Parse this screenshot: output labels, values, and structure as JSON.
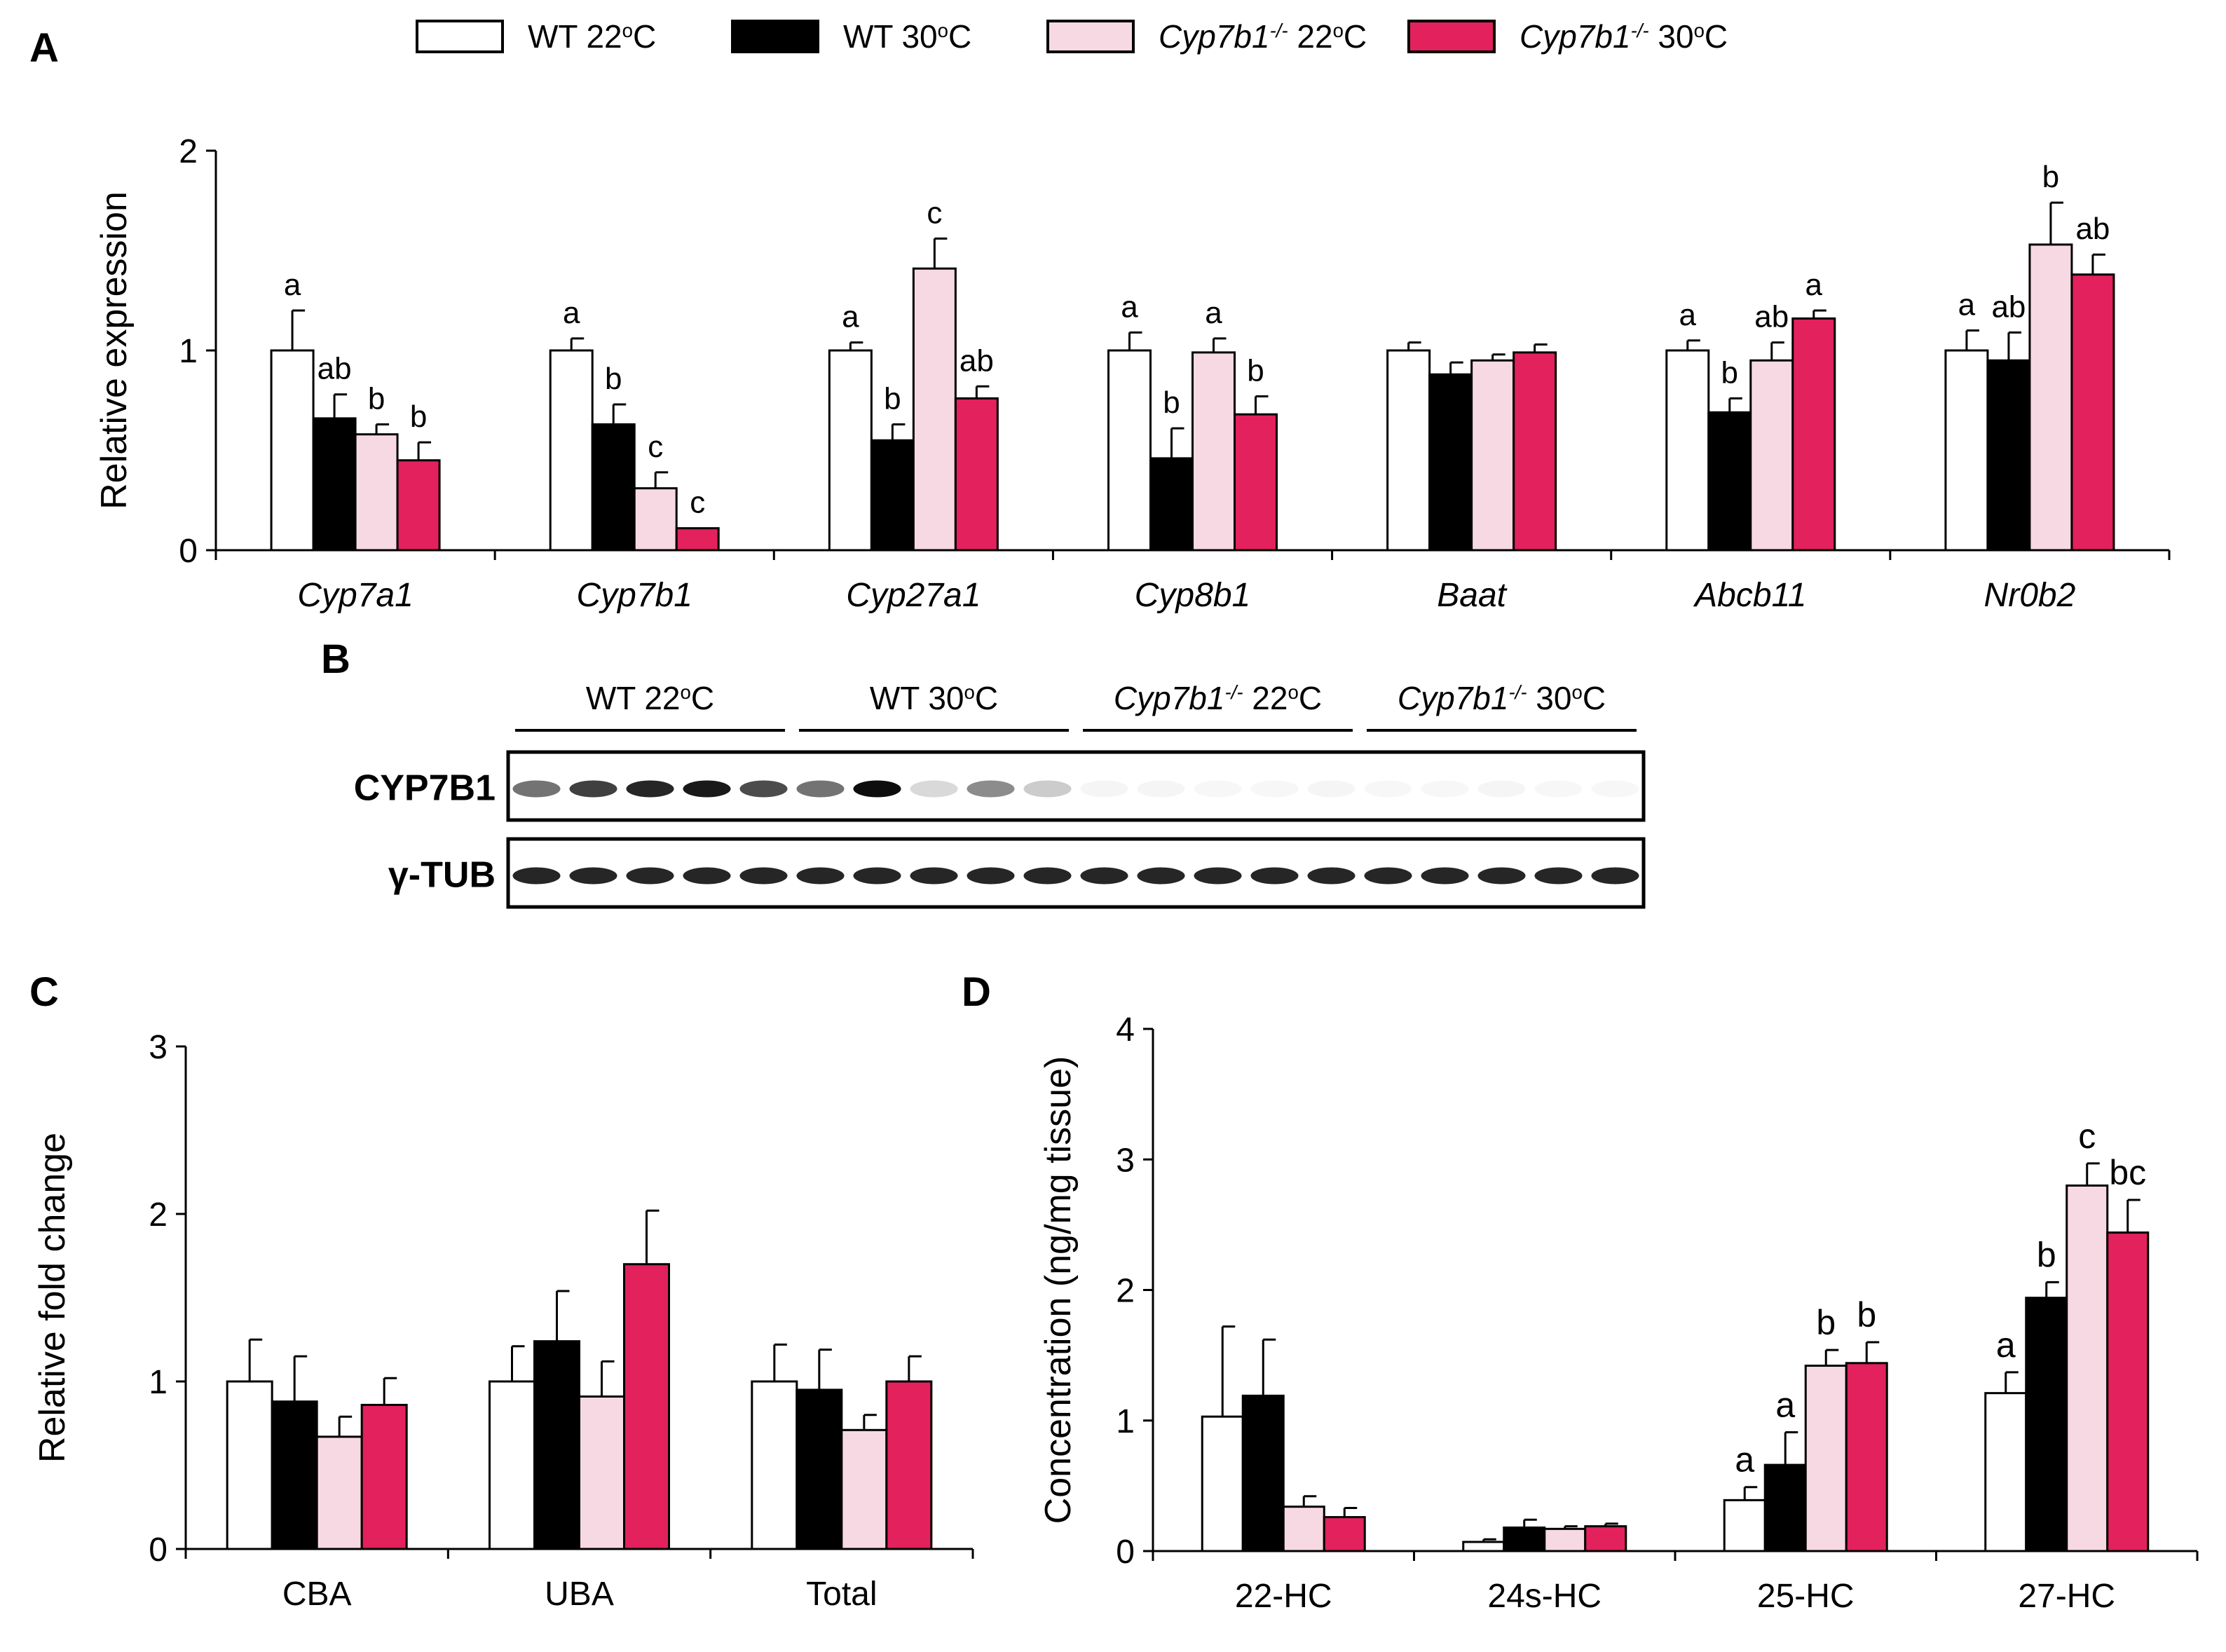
{
  "legend": [
    {
      "name": "WT 22°C",
      "parts": [
        "WT 22",
        "o",
        "C"
      ],
      "italic": false,
      "color": "#ffffff"
    },
    {
      "name": "WT 30°C",
      "parts": [
        "WT 30",
        "o",
        "C"
      ],
      "italic": false,
      "color": "#000000"
    },
    {
      "name": "Cyp7b1-/- 22°C",
      "parts": [
        "Cyp7b1",
        "-/-",
        " 22",
        "o",
        "C"
      ],
      "italic": true,
      "color": "#f7d9e4"
    },
    {
      "name": "Cyp7b1-/- 30°C",
      "parts": [
        "Cyp7b1",
        "-/-",
        " 30",
        "o",
        "C"
      ],
      "italic": true,
      "color": "#e2215d"
    }
  ],
  "panels": {
    "A": "A",
    "B": "B",
    "C": "C",
    "D": "D"
  },
  "chart_data": [
    {
      "panel": "A",
      "type": "bar",
      "ylabel": "Relative expression",
      "ylim": [
        0,
        2
      ],
      "yticks": [
        "0",
        "1",
        "2"
      ],
      "categories": [
        "Cyp7a1",
        "Cyp7b1",
        "Cyp27a1",
        "Cyp8b1",
        "Baat",
        "Abcb11",
        "Nr0b2"
      ],
      "italic_categories": true,
      "series": [
        {
          "name": "WT 22°C",
          "values": [
            1.0,
            1.0,
            1.0,
            1.0,
            1.0,
            1.0,
            1.0
          ],
          "errors": [
            0.2,
            0.06,
            0.04,
            0.09,
            0.04,
            0.05,
            0.1
          ],
          "labels": [
            "a",
            "a",
            "a",
            "a",
            "",
            "a",
            "a"
          ]
        },
        {
          "name": "WT 30°C",
          "values": [
            0.66,
            0.63,
            0.55,
            0.46,
            0.88,
            0.69,
            0.95
          ],
          "errors": [
            0.12,
            0.1,
            0.08,
            0.15,
            0.06,
            0.07,
            0.14
          ],
          "labels": [
            "ab",
            "b",
            "b",
            "b",
            "",
            "b",
            "ab"
          ]
        },
        {
          "name": "Cyp7b1-/- 22°C",
          "values": [
            0.58,
            0.31,
            1.41,
            0.99,
            0.95,
            0.95,
            1.53
          ],
          "errors": [
            0.05,
            0.08,
            0.15,
            0.07,
            0.03,
            0.09,
            0.21
          ],
          "labels": [
            "b",
            "c",
            "c",
            "a",
            "",
            "ab",
            "b"
          ]
        },
        {
          "name": "Cyp7b1-/- 30°C",
          "values": [
            0.45,
            0.11,
            0.76,
            0.68,
            0.99,
            1.16,
            1.38
          ],
          "errors": [
            0.09,
            0.0,
            0.06,
            0.09,
            0.04,
            0.04,
            0.1
          ],
          "labels": [
            "b",
            "c",
            "ab",
            "b",
            "",
            "a",
            "ab"
          ]
        }
      ]
    },
    {
      "panel": "C",
      "type": "bar",
      "ylabel": "Relative fold change",
      "ylim": [
        0,
        3
      ],
      "yticks": [
        "0",
        "1",
        "2",
        "3"
      ],
      "categories": [
        "CBA",
        "UBA",
        "Total"
      ],
      "italic_categories": false,
      "series": [
        {
          "name": "WT 22°C",
          "values": [
            1.0,
            1.0,
            1.0
          ],
          "errors": [
            0.25,
            0.21,
            0.22
          ],
          "labels": [
            "",
            "",
            ""
          ]
        },
        {
          "name": "WT 30°C",
          "values": [
            0.88,
            1.24,
            0.95
          ],
          "errors": [
            0.27,
            0.3,
            0.24
          ],
          "labels": [
            "",
            "",
            ""
          ]
        },
        {
          "name": "Cyp7b1-/- 22°C",
          "values": [
            0.67,
            0.91,
            0.71
          ],
          "errors": [
            0.12,
            0.21,
            0.09
          ],
          "labels": [
            "",
            "",
            ""
          ]
        },
        {
          "name": "Cyp7b1-/- 30°C",
          "values": [
            0.86,
            1.7,
            1.0
          ],
          "errors": [
            0.16,
            0.32,
            0.15
          ],
          "labels": [
            "",
            "",
            ""
          ]
        }
      ]
    },
    {
      "panel": "D",
      "type": "bar",
      "ylabel": "Concentration (ng/mg tissue)",
      "ylim": [
        0,
        4
      ],
      "yticks": [
        "0",
        "1",
        "2",
        "3",
        "4"
      ],
      "categories": [
        "22-HC",
        "24s-HC",
        "25-HC",
        "27-HC"
      ],
      "italic_categories": false,
      "series": [
        {
          "name": "WT 22°C",
          "values": [
            1.03,
            0.07,
            0.39,
            1.21
          ],
          "errors": [
            0.69,
            0.02,
            0.1,
            0.16
          ],
          "labels": [
            "",
            "",
            "a",
            "a"
          ]
        },
        {
          "name": "WT 30°C",
          "values": [
            1.19,
            0.18,
            0.66,
            1.94
          ],
          "errors": [
            0.43,
            0.06,
            0.25,
            0.12
          ],
          "labels": [
            "",
            "",
            "a",
            "b"
          ]
        },
        {
          "name": "Cyp7b1-/- 22°C",
          "values": [
            0.34,
            0.17,
            1.42,
            2.8
          ],
          "errors": [
            0.08,
            0.02,
            0.12,
            0.17
          ],
          "labels": [
            "",
            "",
            "b",
            "c"
          ]
        },
        {
          "name": "Cyp7b1-/- 30°C",
          "values": [
            0.26,
            0.19,
            1.44,
            2.44
          ],
          "errors": [
            0.07,
            0.02,
            0.16,
            0.25
          ],
          "labels": [
            "",
            "",
            "b",
            "bc"
          ]
        }
      ]
    }
  ],
  "blot": {
    "groups": [
      {
        "parts": [
          "WT 22",
          "o",
          "C"
        ],
        "italic": false
      },
      {
        "parts": [
          "WT 30",
          "o",
          "C"
        ],
        "italic": false
      },
      {
        "parts": [
          "Cyp7b1",
          "-/-",
          " 22",
          "o",
          "C"
        ],
        "italic": true
      },
      {
        "parts": [
          "Cyp7b1",
          "-/-",
          " 30",
          "o",
          "C"
        ],
        "italic": true
      }
    ],
    "rows": [
      {
        "label": "CYP7B1",
        "intensity": [
          0.55,
          0.75,
          0.85,
          0.9,
          0.7,
          0.55,
          0.95,
          0.15,
          0.45,
          0.2,
          0.04,
          0.04,
          0.03,
          0.03,
          0.04,
          0.03,
          0.03,
          0.04,
          0.03,
          0.03
        ]
      },
      {
        "label": "γ-TUB",
        "intensity": [
          0.85,
          0.85,
          0.85,
          0.85,
          0.85,
          0.85,
          0.85,
          0.85,
          0.85,
          0.85,
          0.85,
          0.85,
          0.85,
          0.85,
          0.85,
          0.85,
          0.85,
          0.85,
          0.85,
          0.85
        ]
      }
    ]
  }
}
